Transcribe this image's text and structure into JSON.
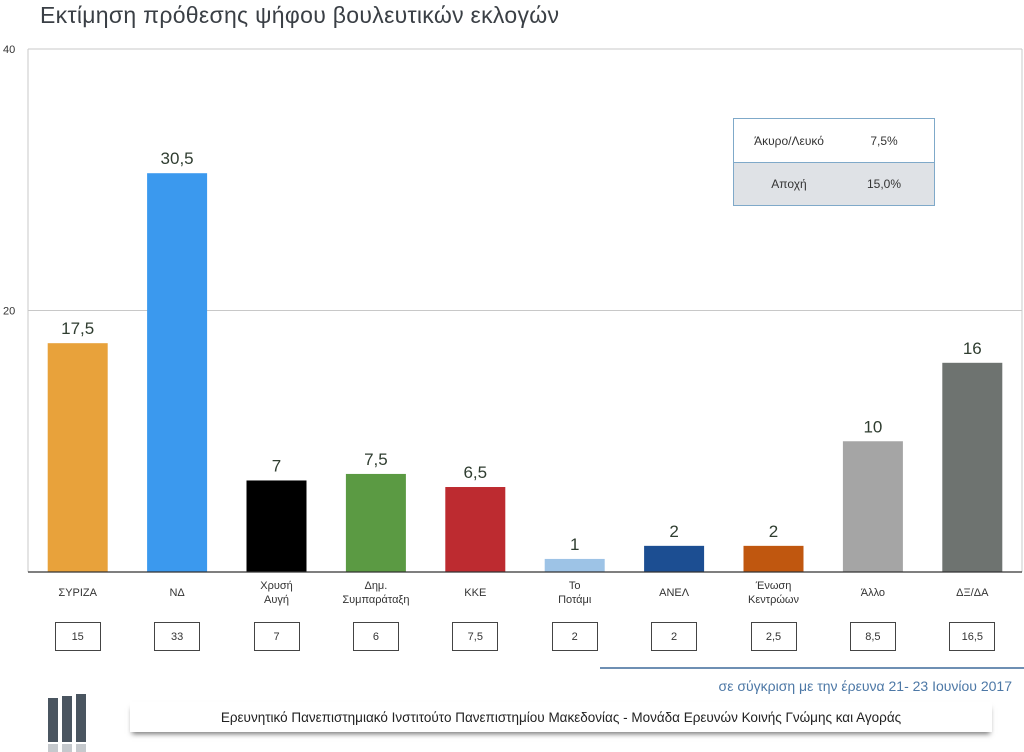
{
  "chart_data": {
    "type": "bar",
    "title": "Εκτίμηση πρόθεσης ψήφου βουλευτικών εκλογών",
    "categories": [
      [
        "ΣΥΡΙΖΑ"
      ],
      [
        "ΝΔ"
      ],
      [
        "Χρυσή",
        "Αυγή"
      ],
      [
        "Δημ.",
        "Συμπαράταξη"
      ],
      [
        "ΚΚΕ"
      ],
      [
        "Το",
        "Ποτάμι"
      ],
      [
        "ΑΝΕΛ"
      ],
      [
        "Ένωση",
        "Κεντρώων"
      ],
      [
        "Άλλο"
      ],
      [
        "ΔΞ/ΔΑ"
      ]
    ],
    "values": [
      17.5,
      30.5,
      7,
      7.5,
      6.5,
      1,
      2,
      2,
      10,
      16
    ],
    "value_labels": [
      "17,5",
      "30,5",
      "7",
      "7,5",
      "6,5",
      "1",
      "2",
      "2",
      "10",
      "16"
    ],
    "colors": [
      "#E8A23B",
      "#3B99EE",
      "#000000",
      "#5B9A43",
      "#BD2B30",
      "#9DC3E6",
      "#1C4E92",
      "#C0570F",
      "#A5A5A5",
      "#6E7370"
    ],
    "ylim": [
      0,
      40
    ],
    "yticks": [
      "20",
      "40"
    ],
    "grid": true,
    "comparison_values": [
      "15",
      "33",
      "7",
      "6",
      "7,5",
      "2",
      "2",
      "2,5",
      "8,5",
      "16,5"
    ]
  },
  "side_table": [
    {
      "label": "Άκυρο/Λευκό",
      "value": "7,5%"
    },
    {
      "label": "Αποχή",
      "value": "15,0%"
    }
  ],
  "comparison_note": "σε σύγκριση με την έρευνα 21- 23 Ιουνίου 2017",
  "footer": "Ερευνητικό Πανεπιστημιακό Ινστιτούτο Πανεπιστημίου Μακεδονίας - Μονάδα Ερευνών Κοινής Γνώμης και Αγοράς"
}
